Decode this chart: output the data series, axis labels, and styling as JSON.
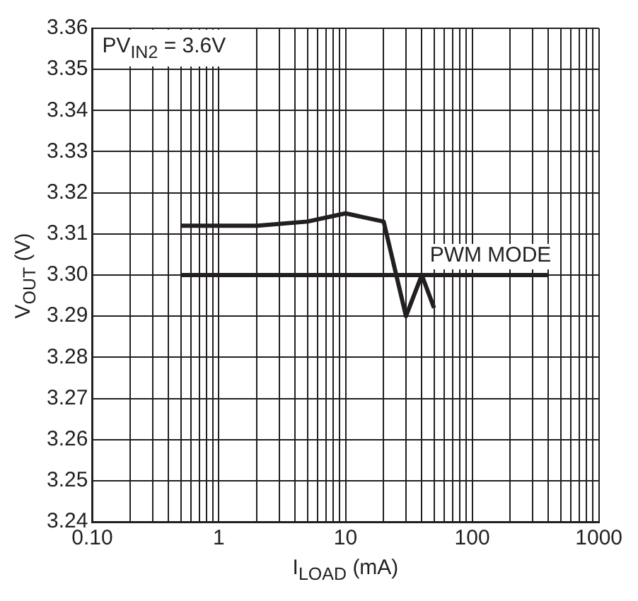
{
  "chart_data": {
    "type": "line",
    "xlabel": "I$_{LOAD}$ (mA)",
    "ylabel": "V$_{OUT}$ (V)",
    "annotations": [
      "PV$_{IN2}$ = 3.6V"
    ],
    "log": "x",
    "grid": true,
    "marker": "none",
    "line_style": "solid",
    "xlim": [
      0.1,
      1000
    ],
    "xticks": [
      {
        "value": 0.1,
        "label": "0.10"
      },
      {
        "value": 0.2,
        "label": null
      },
      {
        "value": 0.3,
        "label": null
      },
      {
        "value": 0.4,
        "label": null
      },
      {
        "value": 0.5,
        "label": null
      },
      {
        "value": 0.6,
        "label": null
      },
      {
        "value": 0.7,
        "label": null
      },
      {
        "value": 0.8,
        "label": null
      },
      {
        "value": 0.9,
        "label": null
      },
      1,
      {
        "value": 2,
        "label": null
      },
      {
        "value": 3,
        "label": null
      },
      {
        "value": 4,
        "label": null
      },
      {
        "value": 5,
        "label": null
      },
      {
        "value": 6,
        "label": null
      },
      {
        "value": 7,
        "label": null
      },
      {
        "value": 8,
        "label": null
      },
      {
        "value": 9,
        "label": null
      },
      10,
      {
        "value": 20,
        "label": null
      },
      {
        "value": 30,
        "label": null
      },
      {
        "value": 40,
        "label": null
      },
      {
        "value": 50,
        "label": null
      },
      {
        "value": 60,
        "label": null
      },
      {
        "value": 70,
        "label": null
      },
      {
        "value": 80,
        "label": null
      },
      {
        "value": 90,
        "label": null
      },
      100,
      {
        "value": 200,
        "label": null
      },
      {
        "value": 300,
        "label": null
      },
      {
        "value": 400,
        "label": null
      },
      {
        "value": 500,
        "label": null
      },
      {
        "value": 600,
        "label": null
      },
      {
        "value": 700,
        "label": null
      },
      {
        "value": 800,
        "label": null
      },
      {
        "value": 900,
        "label": null
      },
      1000
    ],
    "ylim": [
      3.24,
      3.36
    ],
    "yticks": [
      {
        "value": 3.24,
        "label": "3.24"
      },
      {
        "value": 3.25,
        "label": "3.25"
      },
      {
        "value": 3.26,
        "label": "3.26"
      },
      {
        "value": 3.27,
        "label": "3.27"
      },
      {
        "value": 3.28,
        "label": "3.28"
      },
      {
        "value": 3.29,
        "label": "3.29"
      },
      {
        "value": 3.3,
        "label": "3.30"
      },
      {
        "value": 3.31,
        "label": "3.31"
      },
      {
        "value": 3.32,
        "label": "3.32"
      },
      {
        "value": 3.33,
        "label": "3.33"
      },
      {
        "value": 3.34,
        "label": "3.34"
      },
      {
        "value": 3.35,
        "label": "3.35"
      },
      {
        "value": 3.36,
        "label": "3.36"
      }
    ],
    "series": [
      {
        "color": "#231f20",
        "x": [
          0.5,
          2,
          5,
          10,
          20,
          30,
          40,
          50
        ],
        "values": [
          3.312,
          3.312,
          3.313,
          3.315,
          3.313,
          3.29,
          3.3,
          3.292
        ]
      },
      {
        "name": "PWM MODE",
        "color": "#231f20",
        "x": [
          0.5,
          400
        ],
        "values": [
          3.3,
          3.3
        ]
      }
    ]
  }
}
